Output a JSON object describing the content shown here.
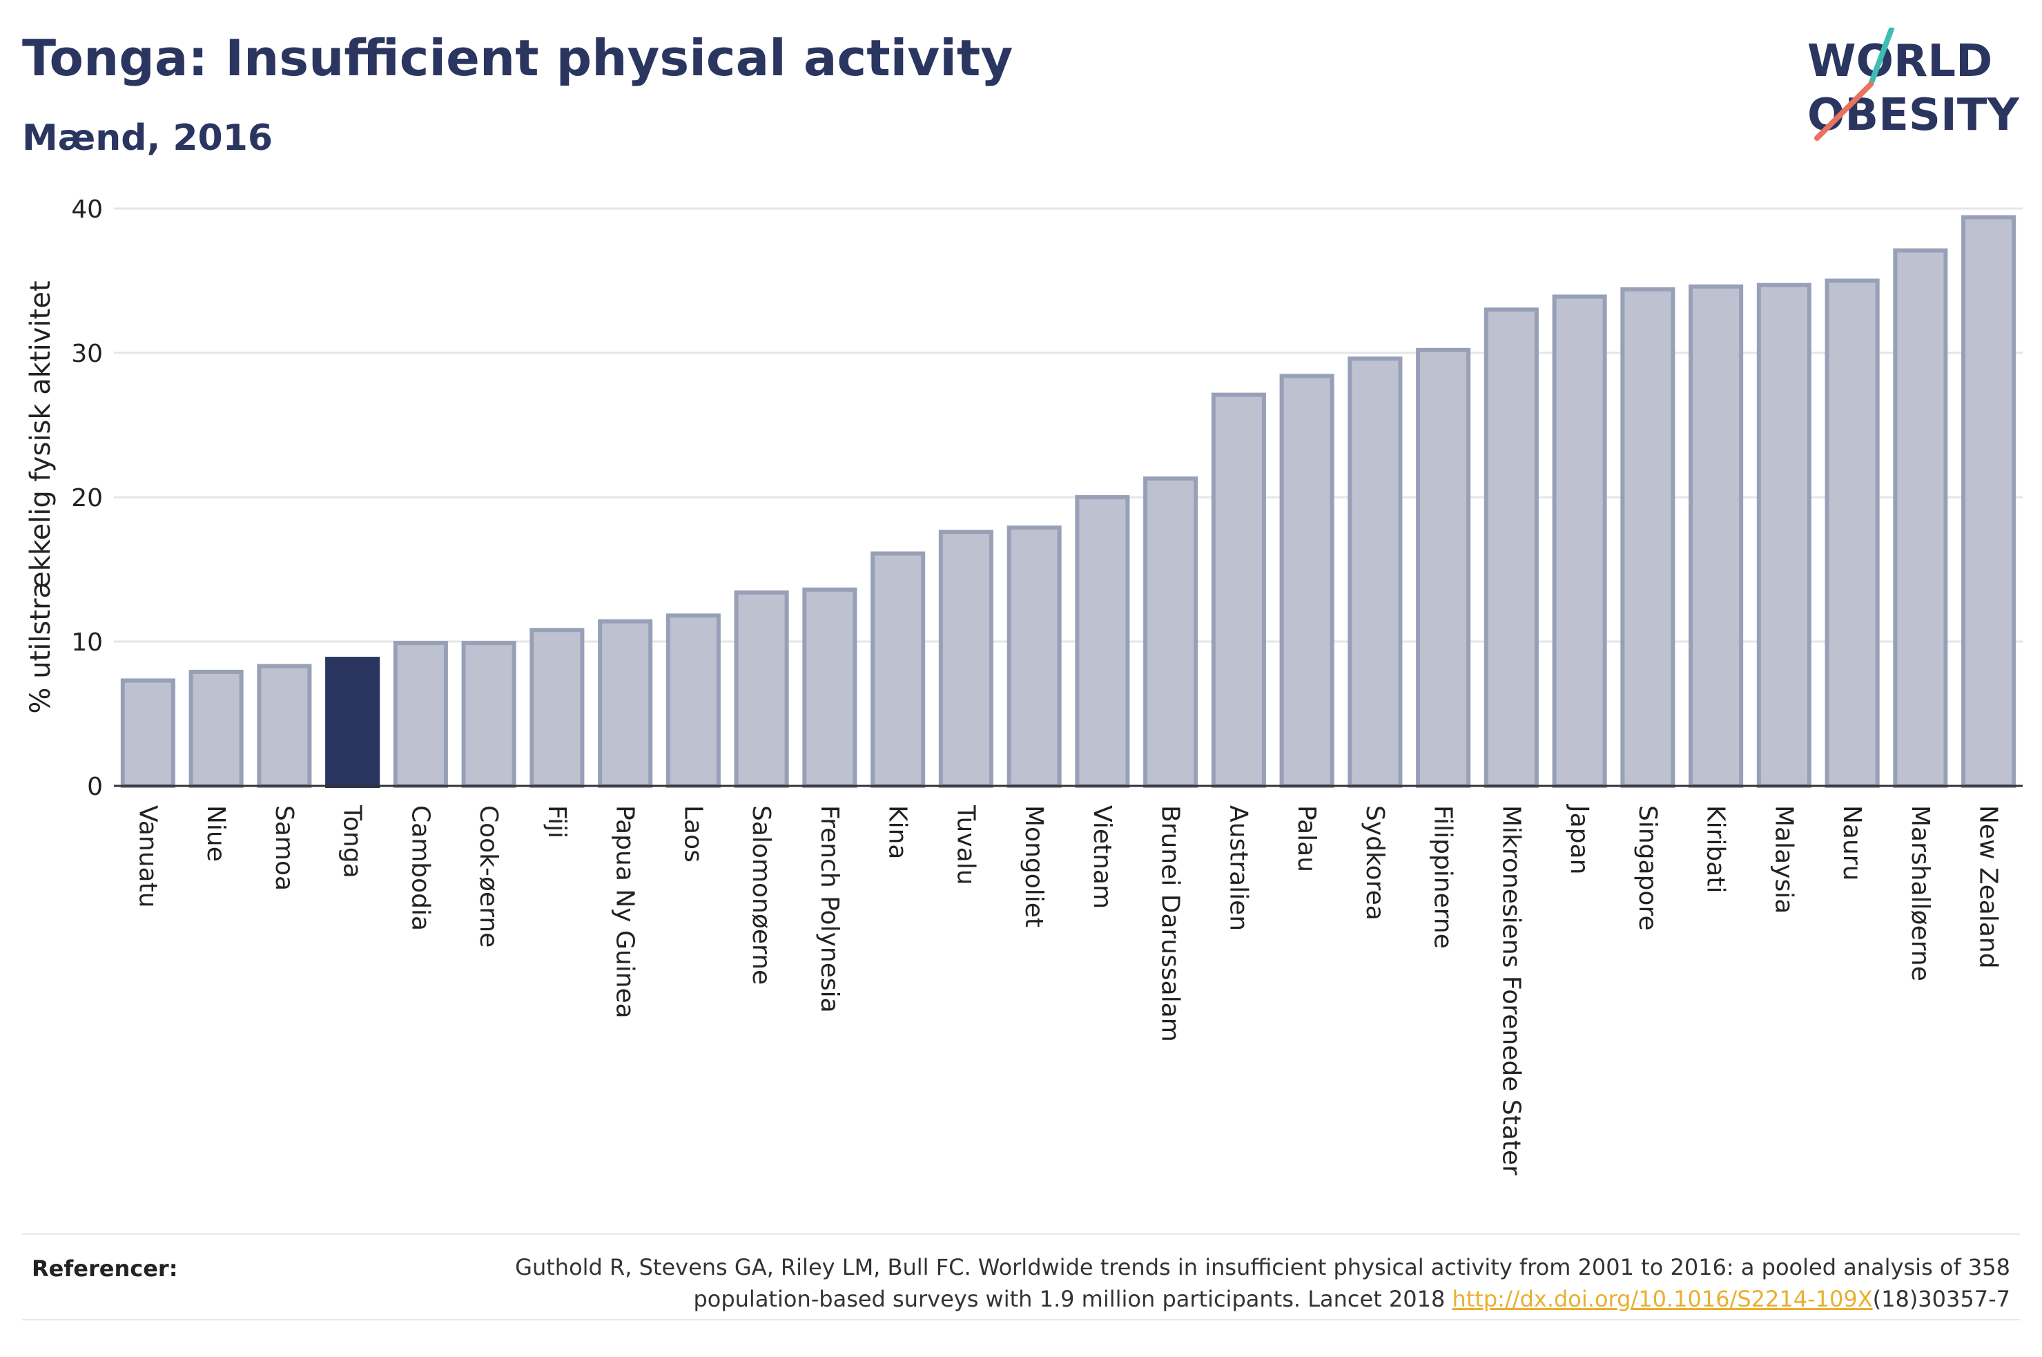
{
  "header": {
    "title": "Tonga: Insufficient physical activity",
    "subtitle": "Mænd, 2016"
  },
  "logo": {
    "line1": "WORLD",
    "line2": "OBESITY",
    "accent_teal": "#3dbdb4",
    "accent_coral": "#e8735f"
  },
  "colors": {
    "bar_default": "#bec1cf",
    "bar_border": "#98a0b8",
    "bar_highlight": "#2a3560",
    "text": "#2a3560"
  },
  "chart_data": {
    "type": "bar",
    "ylabel": "% utilstrækkelig fysisk aktivitet",
    "ylim": [
      0,
      40
    ],
    "yticks": [
      0,
      10,
      20,
      30,
      40
    ],
    "grid": true,
    "highlight": "Tonga",
    "categories": [
      "Vanuatu",
      "Niue",
      "Samoa",
      "Tonga",
      "Cambodia",
      "Cook-øerne",
      "Fiji",
      "Papua Ny Guinea",
      "Laos",
      "Salomonøerne",
      "French Polynesia",
      "Kina",
      "Tuvalu",
      "Mongoliet",
      "Vietnam",
      "Brunei Darussalam",
      "Australien",
      "Palau",
      "Sydkorea",
      "Filippinerne",
      "Mikronesiens Forenede Stater",
      "Japan",
      "Singapore",
      "Kiribati",
      "Malaysia",
      "Nauru",
      "Marshalløerne",
      "New Zealand"
    ],
    "values": [
      7.3,
      7.9,
      8.3,
      8.8,
      9.9,
      9.9,
      10.8,
      11.4,
      11.8,
      13.4,
      13.6,
      16.1,
      17.6,
      17.9,
      20.0,
      21.3,
      27.1,
      28.4,
      29.6,
      30.2,
      33.0,
      33.9,
      34.4,
      34.6,
      34.7,
      35.0,
      37.1,
      39.4
    ]
  },
  "references": {
    "label": "Referencer:",
    "text": "Guthold R, Stevens GA, Riley LM, Bull FC. Worldwide trends in insufficient physical activity from 2001 to 2016: a pooled analysis of 358 population-based surveys with 1.9 million participants. Lancet 2018 ",
    "link": "http://dx.doi.org/10.1016/S2214-109X",
    "suffix": "(18)30357-7"
  }
}
